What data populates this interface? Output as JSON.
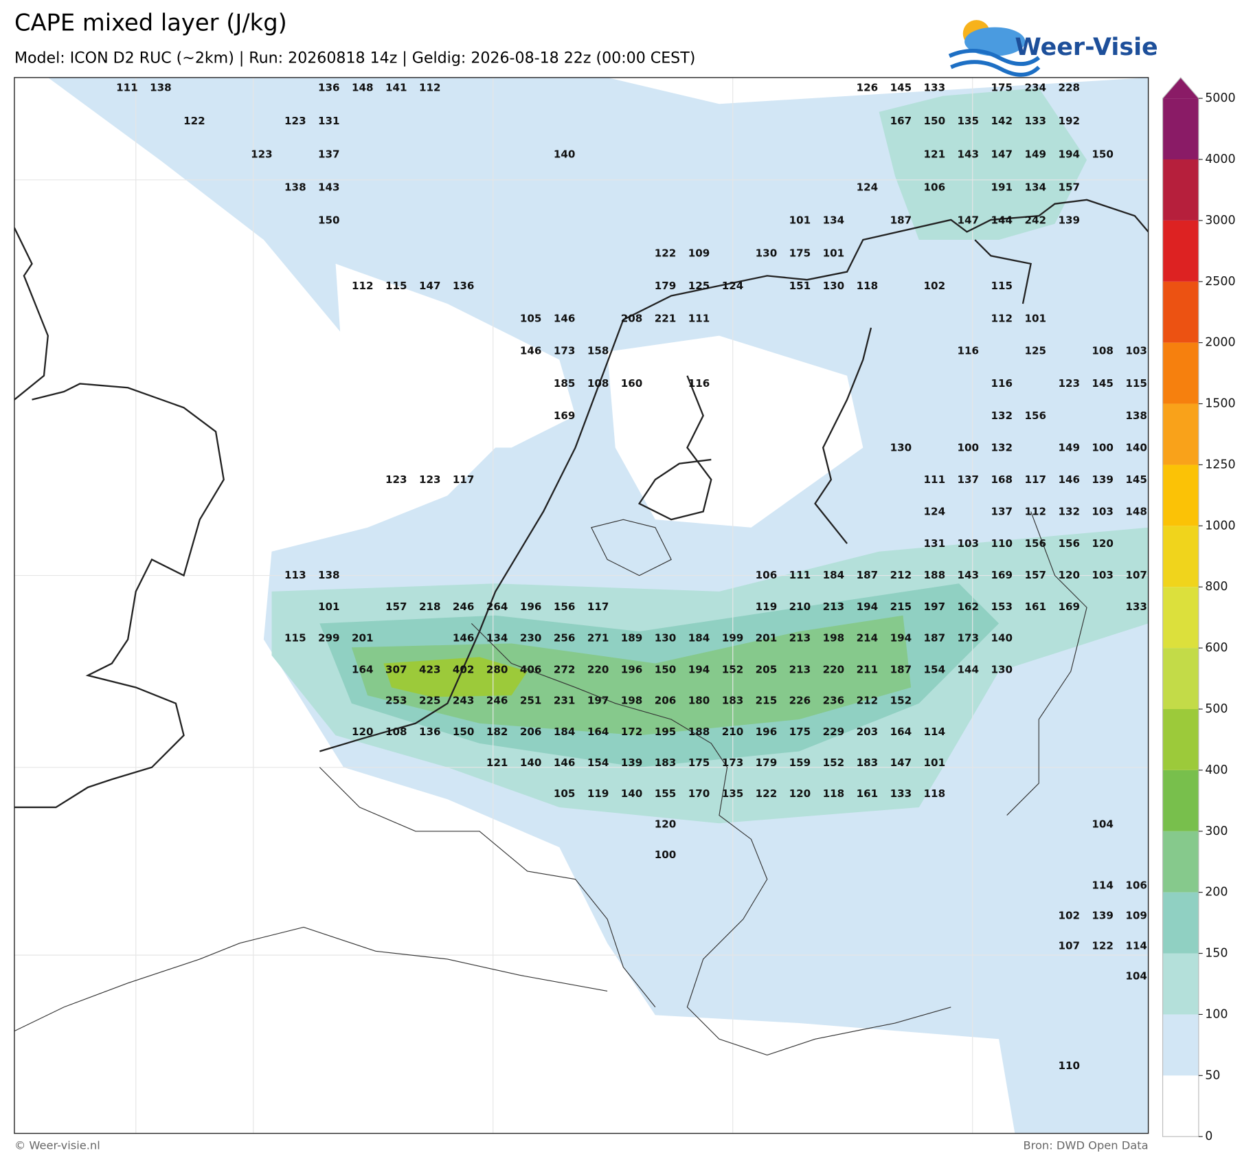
{
  "header": {
    "title": "CAPE mixed layer (J/kg)",
    "subtitle": "Model: ICON D2 RUC (~2km)  |  Run: 20260818 14z  |  Geldig: 2026-08-18 22z (00:00 CEST)",
    "logo": "Weer-Visie"
  },
  "footer": {
    "left": "© Weer-visie.nl",
    "right": "Bron: DWD Open Data"
  },
  "colorbar": {
    "ticks": [
      0,
      50,
      100,
      150,
      200,
      300,
      400,
      500,
      600,
      800,
      1000,
      1250,
      1500,
      2000,
      2500,
      3000,
      4000,
      5000
    ],
    "colors": [
      "#ffffff",
      "#d2e6f5",
      "#b4e0da",
      "#90d0c2",
      "#86c98c",
      "#78bf4c",
      "#9cca3a",
      "#c3db48",
      "#dce03c",
      "#f0d41c",
      "#fbc206",
      "#f9a21a",
      "#f6800e",
      "#ec5212",
      "#dd2222",
      "#b61f3c"
    ],
    "extend_color": "#8a1b66"
  },
  "map_labels": [
    [
      111,
      138,
      null,
      null,
      null,
      null,
      136,
      148,
      141,
      112,
      null,
      null,
      null,
      null,
      null,
      null,
      null,
      null,
      null,
      null,
      null,
      null,
      126,
      145,
      133,
      null,
      175,
      234,
      228
    ],
    [
      null,
      null,
      122,
      null,
      null,
      123,
      131,
      null,
      null,
      null,
      null,
      null,
      null,
      null,
      null,
      null,
      null,
      null,
      null,
      null,
      null,
      null,
      null,
      167,
      150,
      135,
      142,
      133,
      192
    ],
    [
      null,
      null,
      null,
      null,
      123,
      null,
      137,
      null,
      null,
      null,
      null,
      null,
      null,
      140,
      null,
      null,
      null,
      null,
      null,
      null,
      null,
      null,
      null,
      null,
      121,
      143,
      147,
      149,
      194,
      150
    ],
    [
      null,
      null,
      null,
      null,
      null,
      138,
      143,
      null,
      null,
      null,
      null,
      null,
      null,
      null,
      null,
      null,
      null,
      null,
      null,
      null,
      null,
      null,
      124,
      null,
      106,
      null,
      191,
      134,
      157
    ],
    [
      null,
      null,
      null,
      null,
      null,
      null,
      150,
      null,
      null,
      null,
      null,
      null,
      null,
      null,
      null,
      null,
      null,
      null,
      null,
      null,
      101,
      134,
      null,
      187,
      null,
      147,
      144,
      242,
      139
    ],
    [
      null,
      null,
      null,
      null,
      null,
      null,
      null,
      null,
      null,
      null,
      null,
      null,
      null,
      null,
      null,
      null,
      122,
      109,
      null,
      130,
      175,
      101
    ],
    [
      null,
      null,
      null,
      null,
      null,
      null,
      null,
      112,
      115,
      147,
      136,
      null,
      null,
      null,
      null,
      null,
      179,
      125,
      124,
      null,
      151,
      130,
      118,
      null,
      102,
      null,
      115
    ],
    [
      null,
      null,
      null,
      null,
      null,
      null,
      null,
      null,
      null,
      null,
      null,
      null,
      105,
      146,
      null,
      208,
      221,
      111,
      null,
      null,
      null,
      null,
      null,
      null,
      null,
      null,
      112,
      101
    ],
    [
      null,
      null,
      null,
      null,
      null,
      null,
      null,
      null,
      null,
      null,
      null,
      null,
      146,
      173,
      158,
      null,
      null,
      null,
      null,
      null,
      null,
      null,
      null,
      null,
      null,
      116,
      null,
      125,
      null,
      108,
      103
    ],
    [
      null,
      null,
      null,
      null,
      null,
      null,
      null,
      null,
      null,
      null,
      null,
      null,
      null,
      185,
      108,
      160,
      null,
      116,
      null,
      null,
      null,
      null,
      null,
      null,
      null,
      null,
      116,
      null,
      123,
      145,
      115
    ],
    [
      null,
      null,
      null,
      null,
      null,
      null,
      null,
      null,
      null,
      null,
      null,
      null,
      null,
      169,
      null,
      null,
      null,
      null,
      null,
      null,
      null,
      null,
      null,
      null,
      null,
      null,
      132,
      156,
      null,
      null,
      138
    ],
    [
      null,
      null,
      null,
      null,
      null,
      null,
      null,
      null,
      null,
      null,
      null,
      null,
      null,
      null,
      null,
      null,
      null,
      null,
      null,
      null,
      null,
      null,
      null,
      130,
      null,
      100,
      132,
      null,
      149,
      100,
      140
    ],
    [
      null,
      null,
      null,
      null,
      null,
      null,
      null,
      null,
      123,
      123,
      117,
      null,
      null,
      null,
      null,
      null,
      null,
      null,
      null,
      null,
      null,
      null,
      null,
      null,
      111,
      137,
      168,
      117,
      146,
      139,
      145
    ],
    [
      null,
      null,
      null,
      null,
      null,
      null,
      null,
      null,
      null,
      null,
      null,
      null,
      null,
      null,
      null,
      null,
      null,
      null,
      null,
      null,
      null,
      null,
      null,
      null,
      124,
      null,
      137,
      112,
      132,
      103,
      148
    ],
    [
      null,
      null,
      null,
      null,
      null,
      null,
      null,
      null,
      null,
      null,
      null,
      null,
      null,
      null,
      null,
      null,
      null,
      null,
      null,
      null,
      null,
      null,
      null,
      null,
      131,
      103,
      110,
      156,
      156,
      120
    ],
    [
      null,
      null,
      null,
      null,
      null,
      113,
      138,
      null,
      null,
      null,
      null,
      null,
      null,
      null,
      null,
      null,
      null,
      null,
      null,
      106,
      111,
      184,
      187,
      212,
      188,
      143,
      169,
      157,
      120,
      103,
      107
    ],
    [
      null,
      null,
      null,
      null,
      null,
      null,
      101,
      null,
      157,
      218,
      246,
      264,
      196,
      156,
      117,
      null,
      null,
      null,
      null,
      119,
      210,
      213,
      194,
      215,
      197,
      162,
      153,
      161,
      169,
      null,
      133
    ],
    [
      null,
      null,
      null,
      null,
      null,
      115,
      299,
      201,
      null,
      null,
      146,
      134,
      230,
      256,
      271,
      189,
      130,
      184,
      199,
      201,
      213,
      198,
      214,
      194,
      187,
      173,
      140
    ],
    [
      null,
      null,
      null,
      null,
      null,
      null,
      null,
      164,
      307,
      423,
      402,
      280,
      406,
      272,
      220,
      196,
      150,
      194,
      152,
      205,
      213,
      220,
      211,
      187,
      154,
      144,
      130
    ],
    [
      null,
      null,
      null,
      null,
      null,
      null,
      null,
      null,
      253,
      225,
      243,
      246,
      251,
      231,
      197,
      198,
      206,
      180,
      183,
      215,
      226,
      236,
      212,
      152
    ],
    [
      null,
      null,
      null,
      null,
      null,
      null,
      null,
      120,
      108,
      136,
      150,
      182,
      206,
      184,
      164,
      172,
      195,
      188,
      210,
      196,
      175,
      229,
      203,
      164,
      114
    ],
    [
      null,
      null,
      null,
      null,
      null,
      null,
      null,
      null,
      null,
      null,
      null,
      121,
      140,
      146,
      154,
      139,
      183,
      175,
      173,
      179,
      159,
      152,
      183,
      147,
      101
    ],
    [
      null,
      null,
      null,
      null,
      null,
      null,
      null,
      null,
      null,
      null,
      null,
      null,
      null,
      105,
      119,
      140,
      155,
      170,
      135,
      122,
      120,
      118,
      161,
      133,
      118
    ],
    [
      null,
      null,
      null,
      null,
      null,
      null,
      null,
      null,
      null,
      null,
      null,
      null,
      null,
      null,
      null,
      null,
      120,
      null,
      null,
      null,
      null,
      null,
      null,
      null,
      null,
      null,
      null,
      null,
      null,
      104
    ],
    [
      null,
      null,
      null,
      null,
      null,
      null,
      null,
      null,
      null,
      null,
      null,
      null,
      null,
      null,
      null,
      null,
      100
    ],
    [
      null,
      null,
      null,
      null,
      null,
      null,
      null,
      null,
      null,
      null,
      null,
      null,
      null,
      null,
      null,
      null,
      null,
      null,
      null,
      null,
      null,
      null,
      null,
      null,
      null,
      null,
      null,
      null,
      null,
      114,
      106
    ],
    [
      null,
      null,
      null,
      null,
      null,
      null,
      null,
      null,
      null,
      null,
      null,
      null,
      null,
      null,
      null,
      null,
      null,
      null,
      null,
      null,
      null,
      null,
      null,
      null,
      null,
      null,
      null,
      null,
      102,
      139,
      109
    ],
    [
      null,
      null,
      null,
      null,
      null,
      null,
      null,
      null,
      null,
      null,
      null,
      null,
      null,
      null,
      null,
      null,
      null,
      null,
      null,
      null,
      null,
      null,
      null,
      null,
      null,
      null,
      null,
      null,
      107,
      122,
      114
    ],
    [
      null,
      null,
      null,
      null,
      null,
      null,
      null,
      null,
      null,
      null,
      null,
      null,
      null,
      null,
      null,
      null,
      null,
      null,
      null,
      null,
      null,
      null,
      null,
      null,
      null,
      null,
      null,
      null,
      null,
      null,
      104
    ],
    [],
    [],
    [
      null,
      null,
      null,
      null,
      null,
      null,
      null,
      null,
      null,
      null,
      null,
      null,
      null,
      null,
      null,
      null,
      null,
      null,
      null,
      null,
      null,
      null,
      null,
      null,
      null,
      null,
      null,
      null,
      110
    ]
  ]
}
